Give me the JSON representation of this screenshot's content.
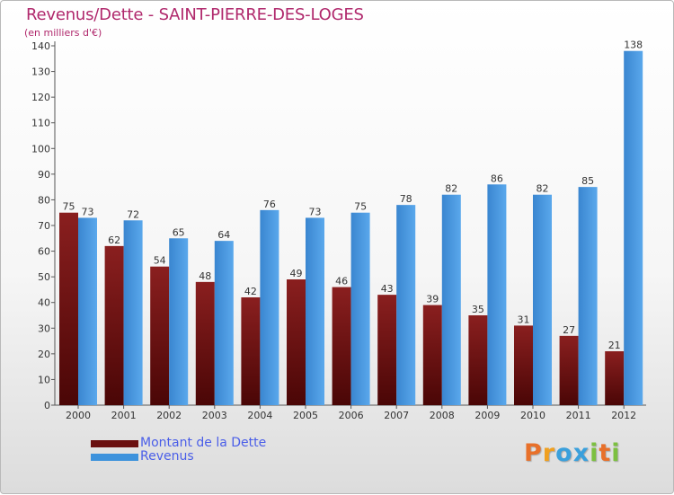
{
  "title": "Revenus/Dette - SAINT-PIERRE-DES-LOGES",
  "subtitle": "(en milliers d'€)",
  "logo_text": "Proxiti",
  "colors": {
    "title": "#b0286c",
    "legend_text": "#4a5ee8",
    "dette": "#7a1818",
    "revenus": "#3d92dc"
  },
  "legend": [
    {
      "label": "Montant de la Dette",
      "color": "#7a1818"
    },
    {
      "label": "Revenus",
      "color": "#3d92dc"
    }
  ],
  "chart_data": {
    "type": "bar",
    "title": "Revenus/Dette - SAINT-PIERRE-DES-LOGES",
    "subtitle": "(en milliers d'€)",
    "xlabel": "",
    "ylabel": "",
    "ylim": [
      0,
      140
    ],
    "yticks": [
      0,
      10,
      20,
      30,
      40,
      50,
      60,
      70,
      80,
      90,
      100,
      110,
      120,
      130,
      140
    ],
    "grid": false,
    "legend_position": "bottom-left",
    "categories": [
      "2000",
      "2001",
      "2002",
      "2003",
      "2004",
      "2005",
      "2006",
      "2007",
      "2008",
      "2009",
      "2010",
      "2011",
      "2012"
    ],
    "series": [
      {
        "name": "Montant de la Dette",
        "color": "#7a1818",
        "values": [
          75,
          62,
          54,
          48,
          42,
          49,
          46,
          43,
          39,
          35,
          31,
          27,
          21
        ]
      },
      {
        "name": "Revenus",
        "color": "#3d92dc",
        "values": [
          73,
          72,
          65,
          64,
          76,
          73,
          75,
          78,
          82,
          86,
          82,
          85,
          138
        ]
      }
    ]
  }
}
